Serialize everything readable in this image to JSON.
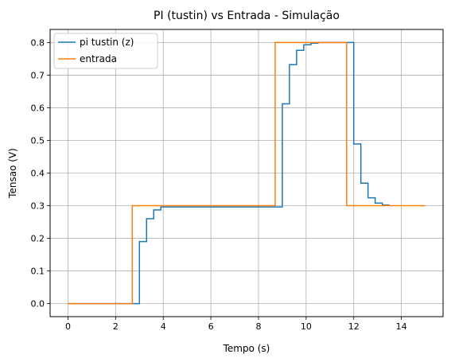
{
  "chart_data": {
    "type": "line",
    "title": "PI (tustin)  vs Entrada - Simulação",
    "xlabel": "Tempo (s)",
    "ylabel": "Tensao (V)",
    "xlim": [
      -0.75,
      15.75
    ],
    "ylim": [
      -0.04,
      0.84
    ],
    "x_ticks": [
      0,
      2,
      4,
      6,
      8,
      10,
      12,
      14
    ],
    "x_tick_labels": [
      "0",
      "2",
      "4",
      "6",
      "8",
      "10",
      "12",
      "14"
    ],
    "y_ticks": [
      0.0,
      0.1,
      0.2,
      0.3,
      0.4,
      0.5,
      0.6,
      0.7,
      0.8
    ],
    "y_tick_labels": [
      "0.0",
      "0.1",
      "0.2",
      "0.3",
      "0.4",
      "0.5",
      "0.6",
      "0.7",
      "0.8"
    ],
    "grid": true,
    "legend_position": "top-left",
    "step_style": "post",
    "series": [
      {
        "name": "pi tustin (z)",
        "color": "#1f77b4",
        "x": [
          0,
          3.0,
          3.3,
          3.6,
          3.9,
          4.2
        ],
        "y": [
          0.0,
          0.19,
          0.26,
          0.287,
          0.296,
          0.296
        ],
        "x_b": [
          9.0,
          9.3,
          9.6,
          9.9,
          10.2,
          10.5,
          12.0,
          12.3,
          12.6,
          12.9,
          13.2,
          13.5
        ],
        "y_b": [
          0.612,
          0.732,
          0.776,
          0.793,
          0.798,
          0.8,
          0.489,
          0.369,
          0.324,
          0.308,
          0.302,
          0.302
        ]
      },
      {
        "name": "entrada",
        "color": "#ff7f0e",
        "x": [
          0,
          2.7,
          8.7,
          11.7,
          15.0
        ],
        "y": [
          0.0,
          0.3,
          0.8,
          0.3,
          0.3
        ]
      }
    ]
  }
}
